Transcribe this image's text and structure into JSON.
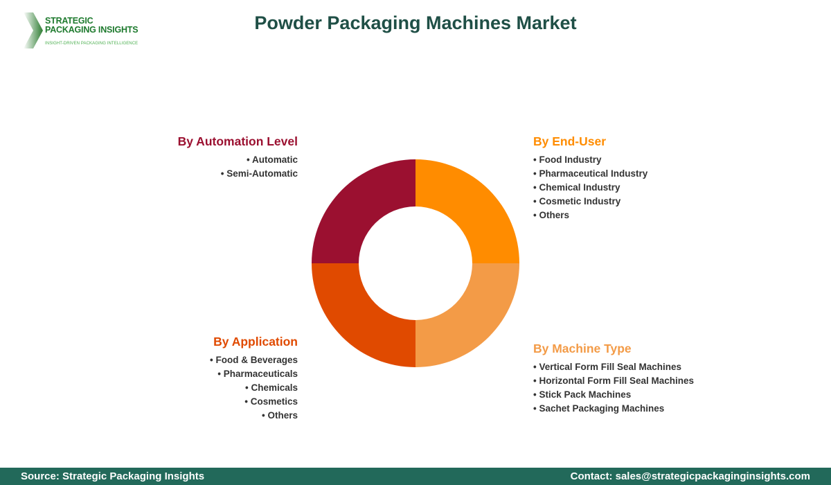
{
  "logo": {
    "name_line1": "STRATEGIC",
    "name_line2": "PACKAGING INSIGHTS",
    "tagline": "INSIGHT-DRIVEN PACKAGING INTELLIGENCE"
  },
  "title": "Powder Packaging Machines Market",
  "groups": {
    "automation": {
      "heading": "By Automation Level",
      "color": "#9b1030",
      "items": [
        "Automatic",
        "Semi-Automatic"
      ]
    },
    "enduser": {
      "heading": "By End-User",
      "color": "#ff8c00",
      "items": [
        "Food Industry",
        "Pharmaceutical Industry",
        "Chemical Industry",
        "Cosmetic Industry",
        "Others"
      ]
    },
    "application": {
      "heading": "By Application",
      "color": "#e04a00",
      "items": [
        "Food & Beverages",
        "Pharmaceuticals",
        "Chemicals",
        "Cosmetics",
        "Others"
      ]
    },
    "machine": {
      "heading": "By Machine Type",
      "color": "#f39b47",
      "items": [
        "Vertical Form Fill Seal Machines",
        "Horizontal Form Fill Seal Machines",
        "Stick Pack Machines",
        "Sachet Packaging Machines"
      ]
    }
  },
  "chart_data": {
    "type": "pie",
    "style": "donut",
    "categories": [
      "By End-User",
      "By Machine Type",
      "By Application",
      "By Automation Level"
    ],
    "values": [
      1,
      1,
      1,
      1
    ],
    "colors": [
      "#ff8c00",
      "#f39b47",
      "#e04a00",
      "#9b1030"
    ]
  },
  "footer": {
    "source": "Source: Strategic Packaging Insights",
    "contact": "Contact: sales@strategicpackaginginsights.com"
  }
}
